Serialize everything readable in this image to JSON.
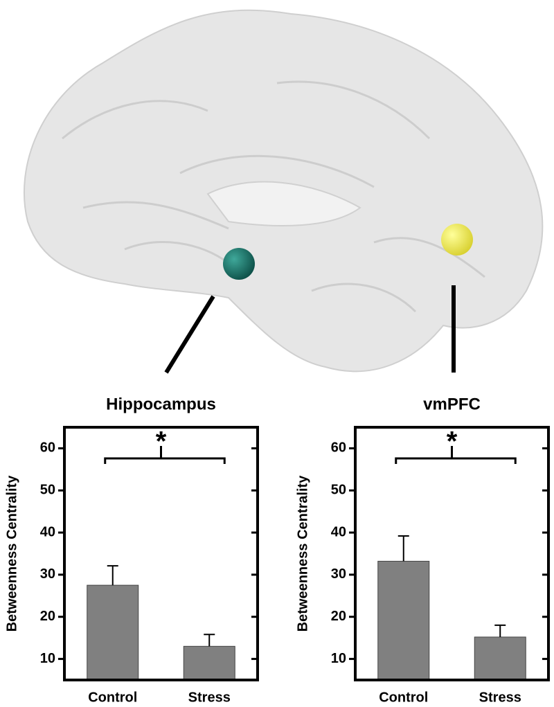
{
  "chart_data": [
    {
      "type": "bar",
      "title": "Hippocampus",
      "y_label": "Betweenness Centrality",
      "categories": [
        "Control",
        "Stress"
      ],
      "values": [
        27.5,
        13
      ],
      "errors": [
        4.6,
        2.8
      ],
      "color": "#808080",
      "ylim": [
        5,
        65
      ],
      "yticks": [
        10,
        20,
        30,
        40,
        50,
        60
      ],
      "annotation": "*"
    },
    {
      "type": "bar",
      "title": "vmPFC",
      "y_label": "Betweenness Centrality",
      "categories": [
        "Control",
        "Stress"
      ],
      "values": [
        33.2,
        15.2
      ],
      "errors": [
        6,
        2.8
      ],
      "color": "#808080",
      "ylim": [
        5,
        65
      ],
      "yticks": [
        10,
        20,
        30,
        40,
        50,
        60
      ],
      "annotation": "*"
    }
  ]
}
